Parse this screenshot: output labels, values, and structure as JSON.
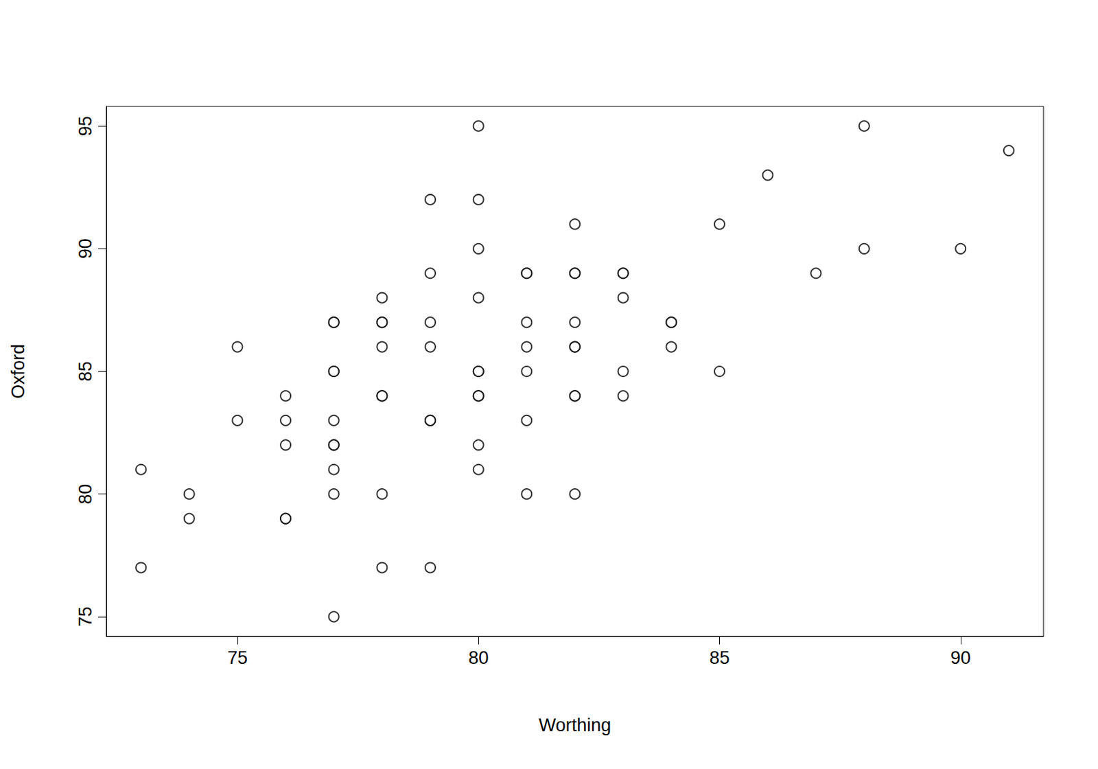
{
  "chart_data": {
    "type": "scatter",
    "x_label": "Worthing",
    "y_label": "Oxford",
    "x": [
      73,
      73,
      74,
      74,
      75,
      75,
      76,
      76,
      76,
      76,
      76,
      77,
      77,
      77,
      77,
      77,
      77,
      77,
      77,
      77,
      77,
      78,
      78,
      78,
      78,
      78,
      78,
      78,
      78,
      79,
      79,
      79,
      79,
      79,
      79,
      79,
      80,
      80,
      80,
      80,
      80,
      80,
      80,
      80,
      80,
      80,
      81,
      81,
      81,
      81,
      81,
      81,
      81,
      82,
      82,
      82,
      82,
      82,
      82,
      82,
      82,
      82,
      83,
      83,
      83,
      83,
      83,
      84,
      84,
      84,
      85,
      85,
      86,
      87,
      88,
      88,
      90,
      91
    ],
    "values": [
      81,
      77,
      80,
      79,
      86,
      83,
      84,
      83,
      82,
      79,
      79,
      87,
      87,
      85,
      85,
      83,
      82,
      82,
      81,
      80,
      75,
      88,
      87,
      87,
      86,
      84,
      84,
      80,
      77,
      92,
      89,
      87,
      86,
      83,
      83,
      77,
      95,
      92,
      90,
      88,
      85,
      85,
      84,
      84,
      82,
      81,
      89,
      89,
      87,
      86,
      85,
      83,
      80,
      91,
      89,
      89,
      87,
      86,
      86,
      84,
      84,
      80,
      89,
      89,
      88,
      85,
      84,
      87,
      87,
      86,
      91,
      85,
      93,
      89,
      95,
      90,
      90,
      94
    ],
    "color": "#000000",
    "marker": "circle open",
    "xlim": [
      72.28,
      91.72
    ],
    "ylim": [
      74.2,
      95.8
    ],
    "xticks": [
      75,
      80,
      85,
      90
    ],
    "yticks": [
      75,
      80,
      85,
      90,
      95
    ],
    "grid": false
  }
}
